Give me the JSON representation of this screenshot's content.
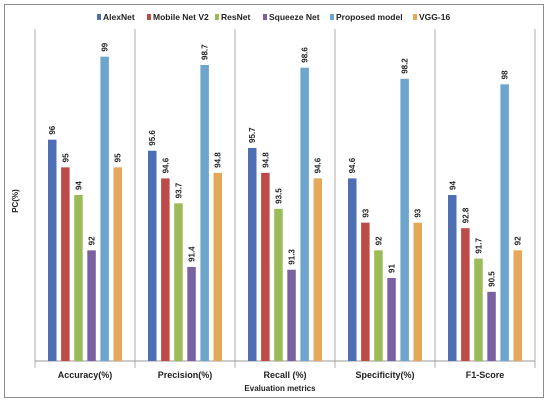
{
  "chart_data": {
    "type": "bar",
    "title": "",
    "xlabel": "Evaluation metrics",
    "ylabel": "PC(%)",
    "ylim": [
      88,
      100
    ],
    "grid": false,
    "legend_position": "top",
    "categories": [
      "Accuracy(%)",
      "Precision(%)",
      "Recall (%)",
      "Specificity(%)",
      "F1-Score"
    ],
    "series": [
      {
        "name": "AlexNet",
        "color": "#4f6fb4",
        "values": [
          96,
          95.6,
          95.7,
          94.6,
          94
        ],
        "labels": [
          "96",
          "95.6",
          "95.7",
          "94.6",
          "94"
        ]
      },
      {
        "name": "Mobile Net V2",
        "color": "#bd4b48",
        "values": [
          95,
          94.6,
          94.8,
          93,
          92.8
        ],
        "labels": [
          "95",
          "94.6",
          "94.8",
          "93",
          "92.8"
        ]
      },
      {
        "name": "ResNet",
        "color": "#9bbb59",
        "values": [
          94,
          93.7,
          93.5,
          92,
          91.7
        ],
        "labels": [
          "94",
          "93.7",
          "93.5",
          "92",
          "91.7"
        ]
      },
      {
        "name": "Squeeze Net",
        "color": "#7a62a2",
        "values": [
          92,
          91.4,
          91.3,
          91,
          90.5
        ],
        "labels": [
          "92",
          "91.4",
          "91.3",
          "91",
          "90.5"
        ]
      },
      {
        "name": "Proposed model",
        "color": "#6ea5cc",
        "values": [
          99,
          98.7,
          98.6,
          98.2,
          98
        ],
        "labels": [
          "99",
          "98.7",
          "98.6",
          "98.2",
          "98"
        ]
      },
      {
        "name": "VGG-16",
        "color": "#e5a85a",
        "values": [
          95,
          94.8,
          94.6,
          93,
          92
        ],
        "labels": [
          "95",
          "94.8",
          "94.6",
          "93",
          "92"
        ]
      }
    ]
  }
}
